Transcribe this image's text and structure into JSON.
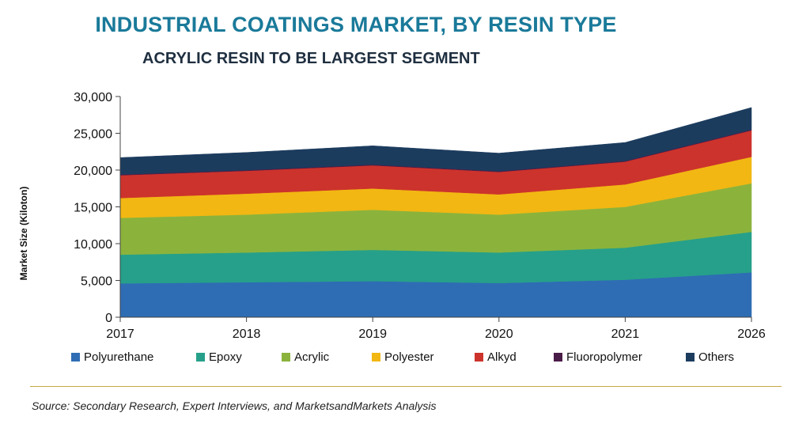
{
  "header": {
    "title": "INDUSTRIAL COATINGS MARKET, BY RESIN TYPE",
    "subtitle": "ACRYLIC RESIN TO BE LARGEST SEGMENT"
  },
  "footer": {
    "source": "Source: Secondary Research, Expert Interviews, and MarketsandMarkets Analysis"
  },
  "chart_data": {
    "type": "area",
    "stacked": true,
    "ylabel": "Market Size (Kiloton)",
    "xlabel": "",
    "ylim": [
      0,
      30000
    ],
    "yticks": [
      "0",
      "5,000",
      "10,000",
      "15,000",
      "20,000",
      "25,000",
      "30,000"
    ],
    "ytick_values": [
      0,
      5000,
      10000,
      15000,
      20000,
      25000,
      30000
    ],
    "categories": [
      "2017",
      "2018",
      "2019",
      "2020",
      "2021",
      "2026"
    ],
    "legend_position": "bottom",
    "grid": false,
    "series": [
      {
        "name": "Polyurethane",
        "color": "#2e6db4",
        "values": [
          4600,
          4750,
          4900,
          4650,
          5100,
          6100
        ]
      },
      {
        "name": "Epoxy",
        "color": "#26a08a",
        "values": [
          3900,
          4050,
          4250,
          4150,
          4350,
          5500
        ]
      },
      {
        "name": "Acrylic",
        "color": "#8bb33c",
        "values": [
          5000,
          5150,
          5450,
          5150,
          5550,
          6600
        ]
      },
      {
        "name": "Polyester",
        "color": "#f2b713",
        "values": [
          2700,
          2850,
          2900,
          2750,
          3050,
          3600
        ]
      },
      {
        "name": "Alkyd",
        "color": "#cc332c",
        "values": [
          3100,
          3100,
          3150,
          3050,
          3100,
          3600
        ]
      },
      {
        "name": "Fluoropolymer",
        "color": "#4a1c48",
        "values": [
          100,
          100,
          100,
          100,
          100,
          100
        ]
      },
      {
        "name": "Others",
        "color": "#1c3c5e",
        "values": [
          2300,
          2400,
          2550,
          2450,
          2500,
          3000
        ]
      }
    ]
  }
}
